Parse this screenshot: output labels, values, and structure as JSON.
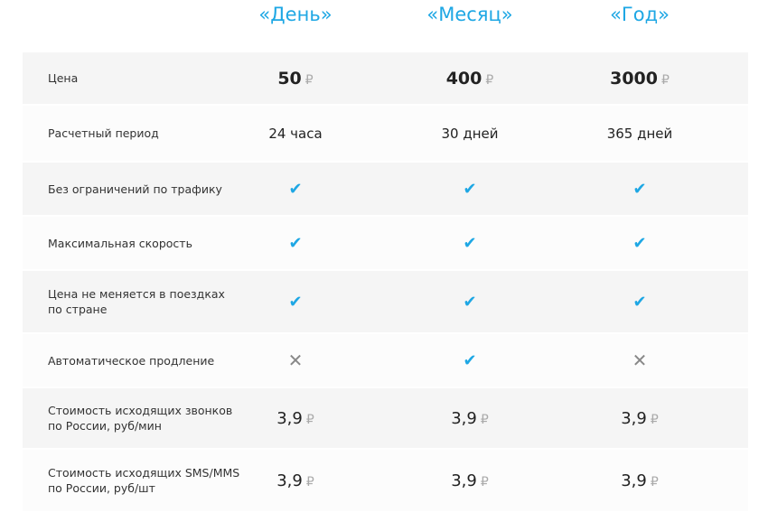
{
  "plans": [
    "«День»",
    "«Месяц»",
    "«Год»"
  ],
  "currency": "₽",
  "accent": "#1ea7e4",
  "rows": [
    {
      "label": "Цена",
      "type": "price",
      "values": [
        "50",
        "400",
        "3000"
      ]
    },
    {
      "label": "Расчетный период",
      "type": "text",
      "values": [
        "24 часа",
        "30 дней",
        "365 дней"
      ]
    },
    {
      "label": "Без ограничений по трафику",
      "type": "bool",
      "values": [
        true,
        true,
        true
      ]
    },
    {
      "label": "Максимальная скорость",
      "type": "bool",
      "values": [
        true,
        true,
        true
      ]
    },
    {
      "label": "Цена не меняется в поездках по стране",
      "type": "bool",
      "values": [
        true,
        true,
        true
      ]
    },
    {
      "label": "Автоматическое продление",
      "type": "bool",
      "values": [
        false,
        true,
        false
      ]
    },
    {
      "label": "Стоимость исходящих звонков по России, руб/мин",
      "type": "money",
      "values": [
        "3,9",
        "3,9",
        "3,9"
      ]
    },
    {
      "label": "Стоимость исходящих SMS/MMS по России, руб/шт",
      "type": "money",
      "values": [
        "3,9",
        "3,9",
        "3,9"
      ]
    }
  ]
}
